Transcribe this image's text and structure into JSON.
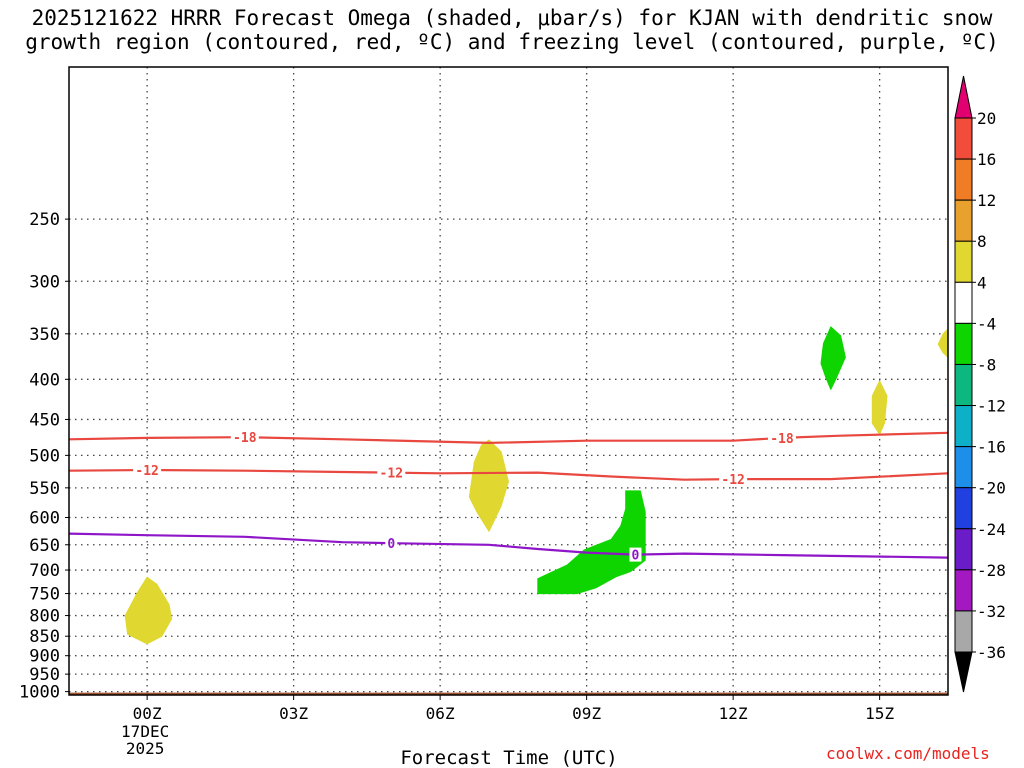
{
  "title_line1": "2025121622 HRRR Forecast Omega (shaded, μbar/s) for KJAN with dendritic snow",
  "title_line2": "growth region (contoured, red, ºC) and freezing level (contoured, purple, ºC)",
  "credit": "coolwx.com/models",
  "chart_data": {
    "type": "time-height",
    "xlabel": "Forecast Time (UTC)",
    "xlim_hours": [
      -1.6,
      16.4
    ],
    "ylim_hPa": [
      1010,
      160
    ],
    "y_scale": "log-pressure",
    "grid": true,
    "x_ticks": [
      {
        "hour": 0,
        "label": "00Z",
        "sub1": "17DEC",
        "sub2": "2025"
      },
      {
        "hour": 3,
        "label": "03Z"
      },
      {
        "hour": 6,
        "label": "06Z"
      },
      {
        "hour": 9,
        "label": "09Z"
      },
      {
        "hour": 12,
        "label": "12Z"
      },
      {
        "hour": 15,
        "label": "15Z"
      }
    ],
    "y_ticks": [
      250,
      300,
      350,
      400,
      450,
      500,
      550,
      600,
      650,
      700,
      750,
      800,
      850,
      900,
      950,
      1000
    ],
    "ground_pressure_hPa": 1003,
    "contours": [
      {
        "name": "-18",
        "color": "#e8483f",
        "points": [
          [
            -1.6,
            477
          ],
          [
            0,
            475
          ],
          [
            2,
            474
          ],
          [
            4,
            477
          ],
          [
            7,
            482
          ],
          [
            9,
            479
          ],
          [
            12,
            479
          ],
          [
            13,
            475
          ],
          [
            14.2,
            472
          ],
          [
            16.4,
            468
          ]
        ],
        "label_hours": [
          2,
          13
        ]
      },
      {
        "name": "-12",
        "color": "#e8483f",
        "points": [
          [
            -1.6,
            523
          ],
          [
            0,
            522
          ],
          [
            2,
            523
          ],
          [
            4,
            525
          ],
          [
            6,
            527
          ],
          [
            8,
            526
          ],
          [
            9.5,
            532
          ],
          [
            11,
            537
          ],
          [
            12,
            536
          ],
          [
            14,
            536
          ],
          [
            16.4,
            527
          ]
        ],
        "label_hours": [
          0,
          5,
          12
        ]
      },
      {
        "name": "0",
        "color": "#8e16c8",
        "points": [
          [
            -1.6,
            629
          ],
          [
            0,
            632
          ],
          [
            2,
            635
          ],
          [
            4,
            645
          ],
          [
            5,
            647
          ],
          [
            7,
            650
          ],
          [
            8,
            658
          ],
          [
            9,
            665
          ],
          [
            10,
            669
          ],
          [
            11,
            667
          ],
          [
            13,
            670
          ],
          [
            16.4,
            675
          ]
        ],
        "label_hours": [
          5,
          10
        ]
      }
    ],
    "shaded_regions": [
      {
        "band": "4 to 8",
        "color": "#e0d830",
        "points": [
          [
            0,
            715
          ],
          [
            0.2,
            730
          ],
          [
            0.45,
            775
          ],
          [
            0.5,
            808
          ],
          [
            0.3,
            850
          ],
          [
            0,
            869
          ],
          [
            -0.4,
            845
          ],
          [
            -0.45,
            800
          ],
          [
            -0.2,
            748
          ]
        ]
      },
      {
        "band": "4 to 8",
        "color": "#e0d830",
        "points": [
          [
            7,
            478
          ],
          [
            7.25,
            495
          ],
          [
            7.4,
            540
          ],
          [
            7.25,
            580
          ],
          [
            7,
            625
          ],
          [
            6.75,
            590
          ],
          [
            6.6,
            565
          ],
          [
            6.7,
            510
          ],
          [
            6.85,
            485
          ]
        ]
      },
      {
        "band": "4 to 8",
        "color": "#e0d830",
        "points": [
          [
            15,
            402
          ],
          [
            15.15,
            420
          ],
          [
            15.1,
            455
          ],
          [
            15,
            470
          ],
          [
            14.85,
            455
          ],
          [
            14.85,
            420
          ]
        ]
      },
      {
        "band": "4 to 8",
        "color": "#e0d830",
        "points": [
          [
            16.4,
            345
          ],
          [
            16.4,
            375
          ],
          [
            16.3,
            370
          ],
          [
            16.2,
            361
          ],
          [
            16.3,
            350
          ]
        ]
      },
      {
        "band": "-8 to -4",
        "color": "#0ed400",
        "points": [
          [
            9.8,
            555
          ],
          [
            10.1,
            555
          ],
          [
            10.2,
            590
          ],
          [
            10.2,
            680
          ],
          [
            9.9,
            703
          ],
          [
            9.6,
            714
          ],
          [
            9.2,
            737
          ],
          [
            8.8,
            750
          ],
          [
            8,
            750
          ],
          [
            8,
            718
          ],
          [
            8.6,
            690
          ],
          [
            8.95,
            660
          ],
          [
            9.5,
            640
          ],
          [
            9.7,
            615
          ],
          [
            9.8,
            585
          ]
        ]
      },
      {
        "band": "-8 to -4",
        "color": "#0ed400",
        "points": [
          [
            14,
            343
          ],
          [
            14.2,
            352
          ],
          [
            14.3,
            375
          ],
          [
            14.1,
            400
          ],
          [
            14,
            412
          ],
          [
            13.9,
            398
          ],
          [
            13.8,
            382
          ],
          [
            13.85,
            360
          ]
        ]
      }
    ],
    "colorbar": {
      "tick_labels": [
        "20",
        "16",
        "12",
        "8",
        "4",
        "-4",
        "-8",
        "-12",
        "-16",
        "-20",
        "-24",
        "-28",
        "-32",
        "-36"
      ],
      "top_arrow_color": "#e0006f",
      "bottom_arrow_color": "#000000",
      "bands": [
        {
          "range": "16 to 20",
          "color": "#f24c3b"
        },
        {
          "range": "12 to 16",
          "color": "#f07d25"
        },
        {
          "range": "8 to 12",
          "color": "#e8a12c"
        },
        {
          "range": "4 to 8",
          "color": "#e0d830"
        },
        {
          "range": "-4 to 4",
          "color": "#ffffff"
        },
        {
          "range": "-8 to -4",
          "color": "#0ed400"
        },
        {
          "range": "-12 to -8",
          "color": "#0cb87f"
        },
        {
          "range": "-16 to -12",
          "color": "#0eb0c8"
        },
        {
          "range": "-20 to -16",
          "color": "#1d8fe8"
        },
        {
          "range": "-24 to -20",
          "color": "#2040e0"
        },
        {
          "range": "-28 to -24",
          "color": "#6a1cc8"
        },
        {
          "range": "-32 to -28",
          "color": "#a318c0"
        },
        {
          "range": "-36 to -32",
          "color": "#a8a8a8"
        }
      ]
    }
  }
}
